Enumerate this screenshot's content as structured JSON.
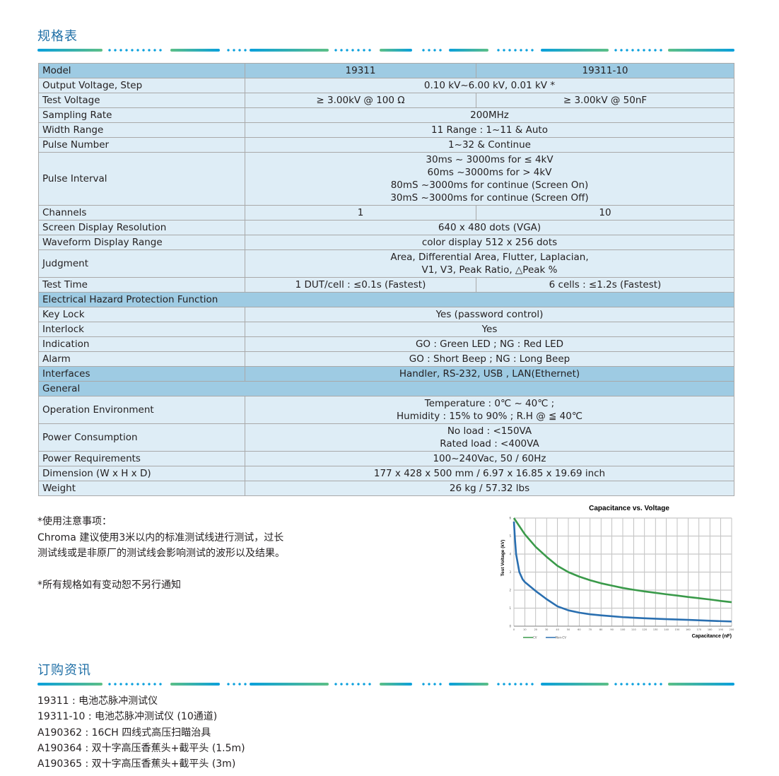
{
  "spec_title": "规格表",
  "order_title": "订购资讯",
  "table": {
    "rows": [
      {
        "label": "Model",
        "cells": [
          "19311",
          "19311-10"
        ],
        "header": true
      },
      {
        "label": "Output Voltage, Step",
        "cells": [
          "0.10 kV~6.00 kV, 0.01 kV *"
        ]
      },
      {
        "label": "Test Voltage",
        "cells": [
          "≥ 3.00kV @ 100 Ω",
          "≥ 3.00kV @ 50nF"
        ]
      },
      {
        "label": "Sampling Rate",
        "cells": [
          "200MHz"
        ]
      },
      {
        "label": "Width Range",
        "cells": [
          "11 Range : 1~11 & Auto"
        ]
      },
      {
        "label": "Pulse Number",
        "cells": [
          "1~32 & Continue"
        ]
      },
      {
        "label": "Pulse Interval",
        "cells": [
          "30ms ~ 3000ms for ≤ 4kV\n60ms ~3000ms for > 4kV\n80mS ~3000ms for continue (Screen On)\n30mS ~3000ms for continue (Screen Off)"
        ]
      },
      {
        "label": "Channels",
        "cells": [
          "1",
          "10"
        ]
      },
      {
        "label": "Screen Display Resolution",
        "cells": [
          "640 x 480 dots (VGA)"
        ]
      },
      {
        "label": "Waveform Display Range",
        "cells": [
          "color display 512 x 256 dots"
        ]
      },
      {
        "label": "Judgment",
        "cells": [
          "Area, Differential Area, Flutter, Laplacian,\nV1, V3, Peak Ratio, △Peak %"
        ]
      },
      {
        "label": "Test Time",
        "cells": [
          "1 DUT/cell : ≤0.1s (Fastest)",
          "6 cells : ≤1.2s (Fastest)"
        ]
      },
      {
        "label": "Electrical Hazard Protection Function",
        "cells": [],
        "header": true
      },
      {
        "label": "Key Lock",
        "cells": [
          "Yes (password control)"
        ]
      },
      {
        "label": "Interlock",
        "cells": [
          "Yes"
        ]
      },
      {
        "label": "Indication",
        "cells": [
          "GO : Green LED ; NG : Red LED"
        ]
      },
      {
        "label": "Alarm",
        "cells": [
          "GO : Short Beep ; NG : Long Beep"
        ]
      },
      {
        "label": "Interfaces",
        "cells": [
          "Handler, RS-232, USB , LAN(Ethernet)"
        ],
        "header": true
      },
      {
        "label": "General",
        "cells": [],
        "header": true
      },
      {
        "label": "Operation Environment",
        "cells": [
          "Temperature : 0℃ ~ 40℃ ;\nHumidity : 15% to 90% ; R.H @ ≦ 40℃"
        ]
      },
      {
        "label": "Power Consumption",
        "cells": [
          "No load : <150VA\nRated load : <400VA"
        ]
      },
      {
        "label": "Power Requirements",
        "cells": [
          "100~240Vac, 50 / 60Hz"
        ]
      },
      {
        "label": "Dimension (W x H x D)",
        "cells": [
          "177 x 428 x 500 mm / 6.97 x 16.85 x 19.69 inch"
        ]
      },
      {
        "label": "Weight",
        "cells": [
          "26 kg / 57.32 lbs"
        ]
      }
    ]
  },
  "notes": {
    "heading": "*使用注意事项：",
    "line1": "Chroma 建议使用3米以内的标准测试线进行测试，过长",
    "line2": "测试线或是非原厂的测试线会影响测试的波形以及结果。",
    "disclaimer": "*所有规格如有变动恕不另行通知"
  },
  "orders": [
    "19311 : 电池芯脉冲测试仪",
    "19311-10 : 电池芯脉冲测试仪 (10通道)",
    "A190362 : 16CH 四线式高压扫瞄治具",
    "A190364 : 双十字高压香蕉头+截平头 (1.5m)",
    "A190365 : 双十字高压香蕉头+截平头 (3m)"
  ],
  "chart_data": {
    "type": "line",
    "title": "Capacitance vs. Voltage",
    "xlabel": "Capacitance (nF)",
    "ylabel": "Test Voltage (kV)",
    "xlim": [
      0,
      200
    ],
    "ylim": [
      0,
      6
    ],
    "xticks": [
      0,
      10,
      20,
      30,
      40,
      50,
      60,
      70,
      80,
      90,
      100,
      110,
      120,
      130,
      140,
      150,
      160,
      170,
      180,
      190,
      200
    ],
    "yticks": [
      0,
      1,
      2,
      3,
      4,
      5,
      6
    ],
    "grid": true,
    "legend": "bottom-left",
    "series": [
      {
        "name": "CV",
        "color": "#3a9a4a",
        "x": [
          0,
          10,
          20,
          30,
          40,
          50,
          60,
          70,
          80,
          90,
          100,
          110,
          120,
          130,
          140,
          150,
          160,
          170,
          180,
          190,
          200
        ],
        "y": [
          6,
          5.1,
          4.4,
          3.85,
          3.35,
          3.0,
          2.75,
          2.55,
          2.38,
          2.25,
          2.12,
          2.02,
          1.93,
          1.85,
          1.77,
          1.7,
          1.62,
          1.55,
          1.48,
          1.4,
          1.33
        ]
      },
      {
        "name": "Non-CV",
        "color": "#2a6fb0",
        "x": [
          0,
          1,
          2,
          5,
          8,
          10,
          20,
          30,
          40,
          50,
          60,
          70,
          80,
          90,
          100,
          120,
          140,
          160,
          180,
          200
        ],
        "y": [
          5.8,
          4.8,
          4.0,
          3.0,
          2.6,
          2.45,
          1.95,
          1.5,
          1.1,
          0.88,
          0.75,
          0.66,
          0.6,
          0.55,
          0.5,
          0.44,
          0.39,
          0.35,
          0.3,
          0.26
        ]
      }
    ]
  }
}
